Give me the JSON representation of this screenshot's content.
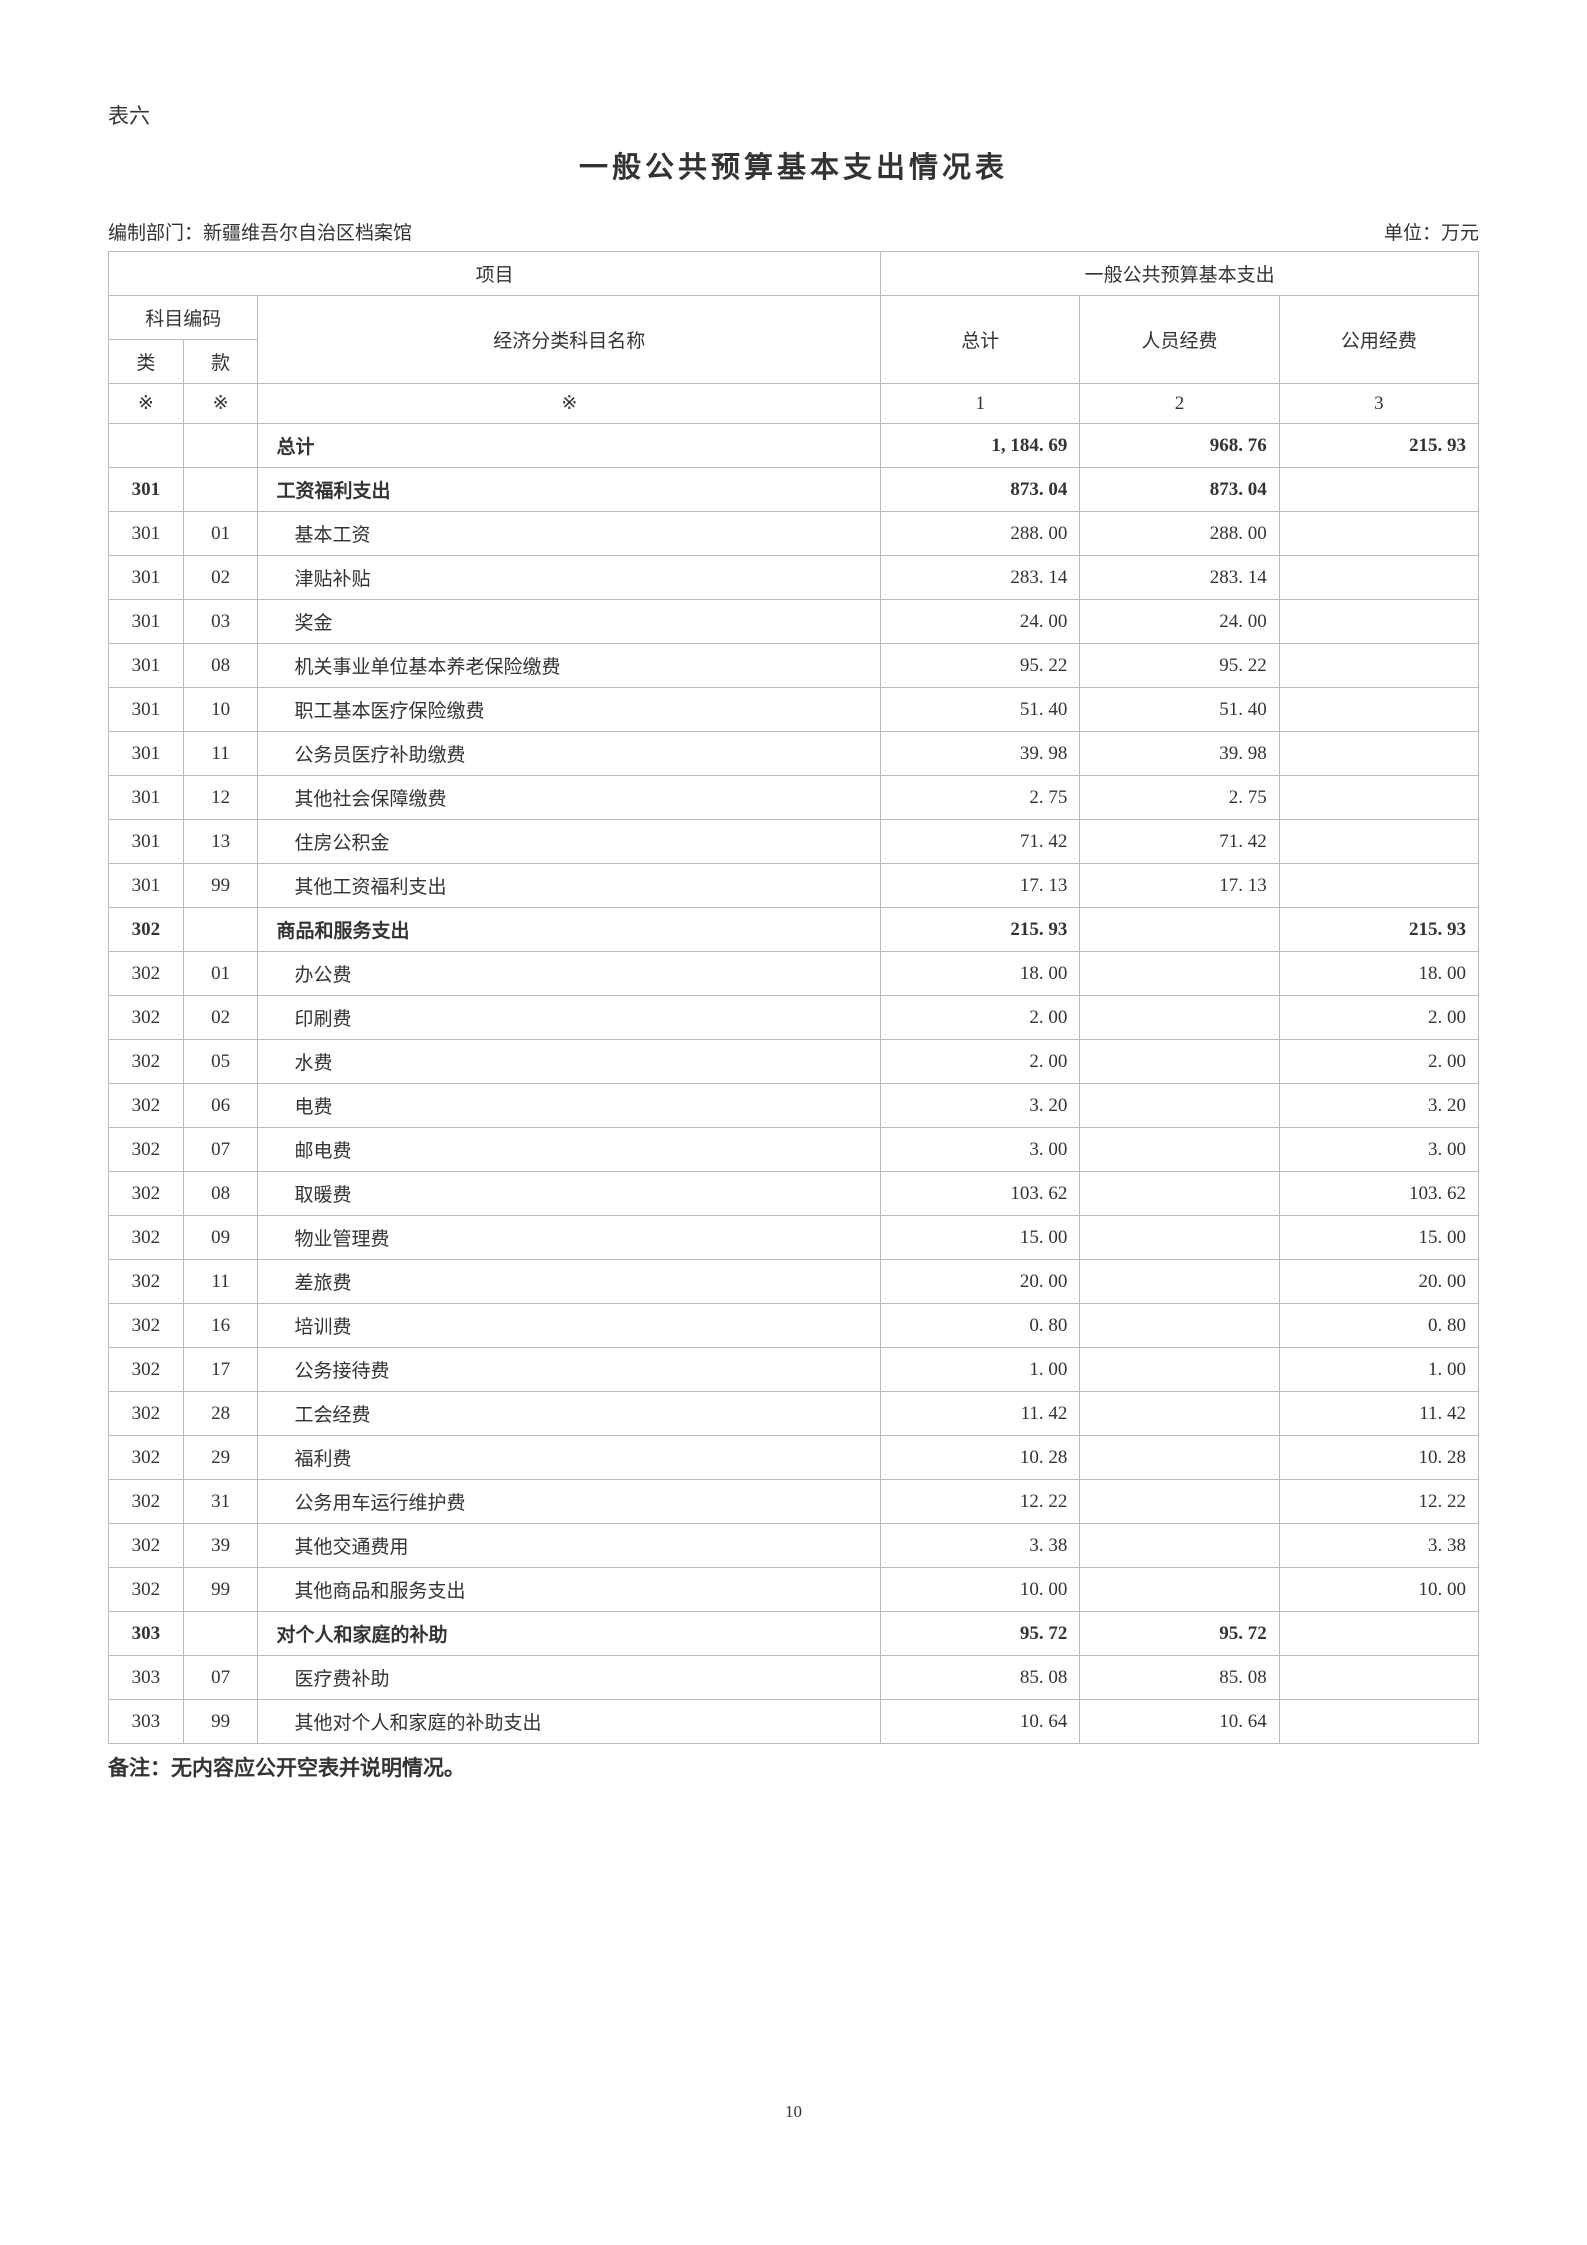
{
  "tableLabel": "表六",
  "title": "一般公共预算基本支出情况表",
  "department": "编制部门：新疆维吾尔自治区档案馆",
  "unit": "单位：万元",
  "headers": {
    "project": "项目",
    "expenditure": "一般公共预算基本支出",
    "subjectCode": "科目编码",
    "category": "类",
    "item": "款",
    "subjectName": "经济分类科目名称",
    "total": "总计",
    "personnel": "人员经费",
    "public": "公用经费",
    "mark": "※",
    "num1": "1",
    "num2": "2",
    "num3": "3"
  },
  "rows": [
    {
      "cat": "",
      "item": "",
      "name": "总计",
      "total": "1, 184. 69",
      "personnel": "968. 76",
      "public": "215. 93",
      "bold": true,
      "indent": false
    },
    {
      "cat": "301",
      "item": "",
      "name": "工资福利支出",
      "total": "873. 04",
      "personnel": "873. 04",
      "public": "",
      "bold": true,
      "indent": false
    },
    {
      "cat": "301",
      "item": "01",
      "name": "基本工资",
      "total": "288. 00",
      "personnel": "288. 00",
      "public": "",
      "bold": false,
      "indent": true
    },
    {
      "cat": "301",
      "item": "02",
      "name": "津贴补贴",
      "total": "283. 14",
      "personnel": "283. 14",
      "public": "",
      "bold": false,
      "indent": true
    },
    {
      "cat": "301",
      "item": "03",
      "name": "奖金",
      "total": "24. 00",
      "personnel": "24. 00",
      "public": "",
      "bold": false,
      "indent": true
    },
    {
      "cat": "301",
      "item": "08",
      "name": "机关事业单位基本养老保险缴费",
      "total": "95. 22",
      "personnel": "95. 22",
      "public": "",
      "bold": false,
      "indent": true
    },
    {
      "cat": "301",
      "item": "10",
      "name": "职工基本医疗保险缴费",
      "total": "51. 40",
      "personnel": "51. 40",
      "public": "",
      "bold": false,
      "indent": true
    },
    {
      "cat": "301",
      "item": "11",
      "name": "公务员医疗补助缴费",
      "total": "39. 98",
      "personnel": "39. 98",
      "public": "",
      "bold": false,
      "indent": true
    },
    {
      "cat": "301",
      "item": "12",
      "name": "其他社会保障缴费",
      "total": "2. 75",
      "personnel": "2. 75",
      "public": "",
      "bold": false,
      "indent": true
    },
    {
      "cat": "301",
      "item": "13",
      "name": "住房公积金",
      "total": "71. 42",
      "personnel": "71. 42",
      "public": "",
      "bold": false,
      "indent": true
    },
    {
      "cat": "301",
      "item": "99",
      "name": "其他工资福利支出",
      "total": "17. 13",
      "personnel": "17. 13",
      "public": "",
      "bold": false,
      "indent": true
    },
    {
      "cat": "302",
      "item": "",
      "name": "商品和服务支出",
      "total": "215. 93",
      "personnel": "",
      "public": "215. 93",
      "bold": true,
      "indent": false
    },
    {
      "cat": "302",
      "item": "01",
      "name": "办公费",
      "total": "18. 00",
      "personnel": "",
      "public": "18. 00",
      "bold": false,
      "indent": true
    },
    {
      "cat": "302",
      "item": "02",
      "name": "印刷费",
      "total": "2. 00",
      "personnel": "",
      "public": "2. 00",
      "bold": false,
      "indent": true
    },
    {
      "cat": "302",
      "item": "05",
      "name": "水费",
      "total": "2. 00",
      "personnel": "",
      "public": "2. 00",
      "bold": false,
      "indent": true
    },
    {
      "cat": "302",
      "item": "06",
      "name": "电费",
      "total": "3. 20",
      "personnel": "",
      "public": "3. 20",
      "bold": false,
      "indent": true
    },
    {
      "cat": "302",
      "item": "07",
      "name": "邮电费",
      "total": "3. 00",
      "personnel": "",
      "public": "3. 00",
      "bold": false,
      "indent": true
    },
    {
      "cat": "302",
      "item": "08",
      "name": "取暖费",
      "total": "103. 62",
      "personnel": "",
      "public": "103. 62",
      "bold": false,
      "indent": true
    },
    {
      "cat": "302",
      "item": "09",
      "name": "物业管理费",
      "total": "15. 00",
      "personnel": "",
      "public": "15. 00",
      "bold": false,
      "indent": true
    },
    {
      "cat": "302",
      "item": "11",
      "name": "差旅费",
      "total": "20. 00",
      "personnel": "",
      "public": "20. 00",
      "bold": false,
      "indent": true
    },
    {
      "cat": "302",
      "item": "16",
      "name": "培训费",
      "total": "0. 80",
      "personnel": "",
      "public": "0. 80",
      "bold": false,
      "indent": true
    },
    {
      "cat": "302",
      "item": "17",
      "name": "公务接待费",
      "total": "1. 00",
      "personnel": "",
      "public": "1. 00",
      "bold": false,
      "indent": true
    },
    {
      "cat": "302",
      "item": "28",
      "name": "工会经费",
      "total": "11. 42",
      "personnel": "",
      "public": "11. 42",
      "bold": false,
      "indent": true
    },
    {
      "cat": "302",
      "item": "29",
      "name": "福利费",
      "total": "10. 28",
      "personnel": "",
      "public": "10. 28",
      "bold": false,
      "indent": true
    },
    {
      "cat": "302",
      "item": "31",
      "name": "公务用车运行维护费",
      "total": "12. 22",
      "personnel": "",
      "public": "12. 22",
      "bold": false,
      "indent": true
    },
    {
      "cat": "302",
      "item": "39",
      "name": "其他交通费用",
      "total": "3. 38",
      "personnel": "",
      "public": "3. 38",
      "bold": false,
      "indent": true
    },
    {
      "cat": "302",
      "item": "99",
      "name": "其他商品和服务支出",
      "total": "10. 00",
      "personnel": "",
      "public": "10. 00",
      "bold": false,
      "indent": true
    },
    {
      "cat": "303",
      "item": "",
      "name": "对个人和家庭的补助",
      "total": "95. 72",
      "personnel": "95. 72",
      "public": "",
      "bold": true,
      "indent": false
    },
    {
      "cat": "303",
      "item": "07",
      "name": "医疗费补助",
      "total": "85. 08",
      "personnel": "85. 08",
      "public": "",
      "bold": false,
      "indent": true
    },
    {
      "cat": "303",
      "item": "99",
      "name": "其他对个人和家庭的补助支出",
      "total": "10. 64",
      "personnel": "10. 64",
      "public": "",
      "bold": false,
      "indent": true
    }
  ],
  "note": "备注：无内容应公开空表并说明情况。",
  "pageNumber": "10",
  "style": {
    "background_color": "#ffffff",
    "text_color": "#333333",
    "border_color": "#bbbbbb",
    "outer_border_color": "#999999",
    "title_fontsize": 29,
    "body_fontsize": 19,
    "label_fontsize": 21
  }
}
